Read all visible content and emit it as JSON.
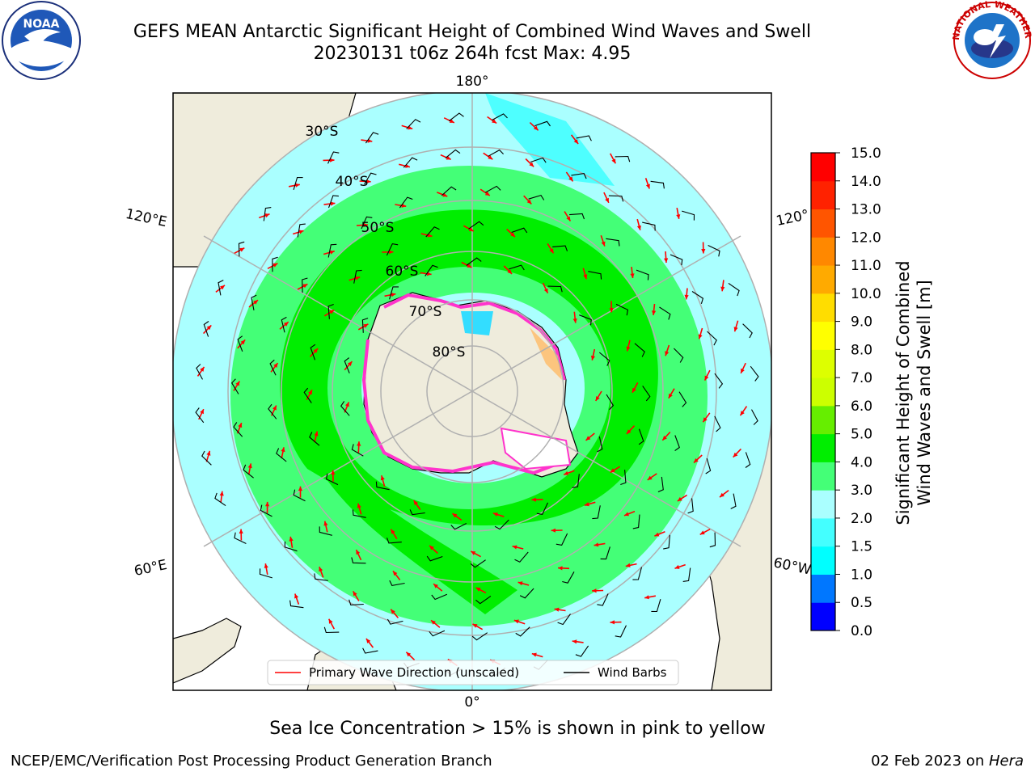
{
  "title_line1": "GEFS MEAN Antarctic Significant Height of Combined Wind Waves and Swell",
  "title_line2": "20230131 t06z 264h fcst   Max: 4.95",
  "lon_labels": [
    "180°",
    "120°E",
    "120°",
    "60°E",
    "60°W",
    "0°"
  ],
  "lat_labels": [
    "30°S",
    "40°S",
    "50°S",
    "60°S",
    "70°S",
    "80°S"
  ],
  "legend": {
    "wave_label": "Primary Wave Direction (unscaled)",
    "barb_label": "Wind Barbs"
  },
  "colorbar": {
    "label_line1": "Significant Height of Combined",
    "label_line2": "Wind Waves and Swell [m]",
    "ticks": [
      "0.0",
      "0.5",
      "1.0",
      "1.5",
      "2.0",
      "3.0",
      "4.0",
      "5.0",
      "6.0",
      "7.0",
      "8.0",
      "9.0",
      "10.0",
      "11.0",
      "12.0",
      "13.0",
      "14.0",
      "15.0"
    ],
    "colors": [
      "#0000ff",
      "#0077ff",
      "#00ffff",
      "#44ffff",
      "#aaffff",
      "#44ff77",
      "#00ee00",
      "#66ee00",
      "#ccff00",
      "#ddff00",
      "#ffff00",
      "#ffdd00",
      "#ffaa00",
      "#ff8800",
      "#ff5500",
      "#ff2200",
      "#ff0000"
    ]
  },
  "note": "Sea Ice Concentration > 15% is shown in pink to yellow",
  "footer_left": "NCEP/EMC/Verification Post Processing Product Generation Branch",
  "footer_date": "02 Feb 2023 on ",
  "footer_host": "Hera",
  "logos": {
    "noaa_text": "NOAA",
    "nws_text": "NATIONAL WEATHER SERVICE"
  },
  "colors": {
    "wave_arrow": "#ff0000",
    "barb": "#000000",
    "land": "#efecdc",
    "grid": "#b0b0b0"
  }
}
